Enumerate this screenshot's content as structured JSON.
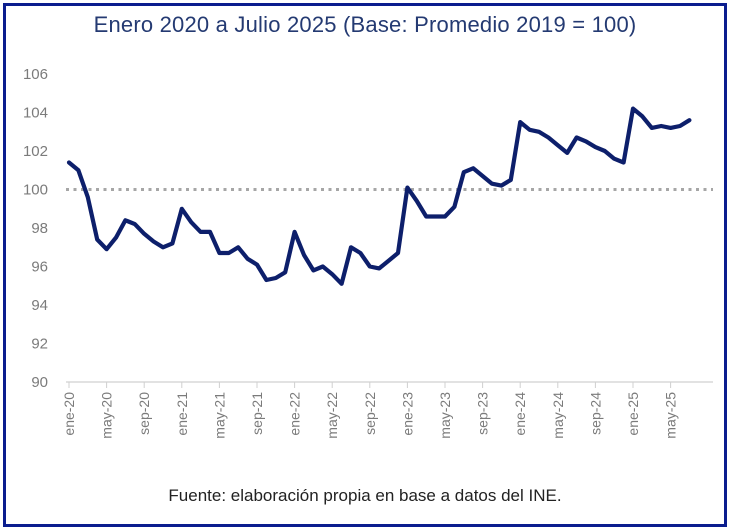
{
  "title": "Enero 2020 a Julio 2025 (Base: Promedio 2019 = 100)",
  "source": "Fuente: elaboración propia en base a datos del INE.",
  "colors": {
    "frame": "#0b1d8e",
    "line": "#0d1f6b",
    "reference": "#a6a6a6",
    "title": "#243a72"
  },
  "chart_data": {
    "type": "line",
    "title": "Enero 2020 a Julio 2025 (Base: Promedio 2019 = 100)",
    "xlabel": "",
    "ylabel": "",
    "ylim": [
      90,
      106
    ],
    "yticks": [
      90,
      92,
      94,
      96,
      98,
      100,
      102,
      104,
      106
    ],
    "grid": false,
    "reference_line": {
      "y": 100,
      "style": "dotted"
    },
    "x_tick_labels": [
      "ene-20",
      "may-20",
      "sep-20",
      "ene-21",
      "may-21",
      "sep-21",
      "ene-22",
      "may-22",
      "sep-22",
      "ene-23",
      "may-23",
      "sep-23",
      "ene-24",
      "may-24",
      "sep-24",
      "ene-25",
      "may-25"
    ],
    "x": [
      "2020-01",
      "2020-02",
      "2020-03",
      "2020-04",
      "2020-05",
      "2020-06",
      "2020-07",
      "2020-08",
      "2020-09",
      "2020-10",
      "2020-11",
      "2020-12",
      "2021-01",
      "2021-02",
      "2021-03",
      "2021-04",
      "2021-05",
      "2021-06",
      "2021-07",
      "2021-08",
      "2021-09",
      "2021-10",
      "2021-11",
      "2021-12",
      "2022-01",
      "2022-02",
      "2022-03",
      "2022-04",
      "2022-05",
      "2022-06",
      "2022-07",
      "2022-08",
      "2022-09",
      "2022-10",
      "2022-11",
      "2022-12",
      "2023-01",
      "2023-02",
      "2023-03",
      "2023-04",
      "2023-05",
      "2023-06",
      "2023-07",
      "2023-08",
      "2023-09",
      "2023-10",
      "2023-11",
      "2023-12",
      "2024-01",
      "2024-02",
      "2024-03",
      "2024-04",
      "2024-05",
      "2024-06",
      "2024-07",
      "2024-08",
      "2024-09",
      "2024-10",
      "2024-11",
      "2024-12",
      "2025-01",
      "2025-02",
      "2025-03",
      "2025-04",
      "2025-05",
      "2025-06",
      "2025-07"
    ],
    "values": [
      101.4,
      101.0,
      99.6,
      97.4,
      96.9,
      97.5,
      98.4,
      98.2,
      97.7,
      97.3,
      97.0,
      97.2,
      99.0,
      98.3,
      97.8,
      97.8,
      96.7,
      96.7,
      97.0,
      96.4,
      96.1,
      95.3,
      95.4,
      95.7,
      97.8,
      96.6,
      95.8,
      96.0,
      95.6,
      95.1,
      97.0,
      96.7,
      96.0,
      95.9,
      96.3,
      96.7,
      100.1,
      99.4,
      98.6,
      98.6,
      98.6,
      99.1,
      100.9,
      101.1,
      100.7,
      100.3,
      100.2,
      100.5,
      103.5,
      103.1,
      103.0,
      102.7,
      102.3,
      101.9,
      102.7,
      102.5,
      102.2,
      102.0,
      101.6,
      101.4,
      104.2,
      103.8,
      103.2,
      103.3,
      103.2,
      103.3,
      103.6
    ]
  }
}
